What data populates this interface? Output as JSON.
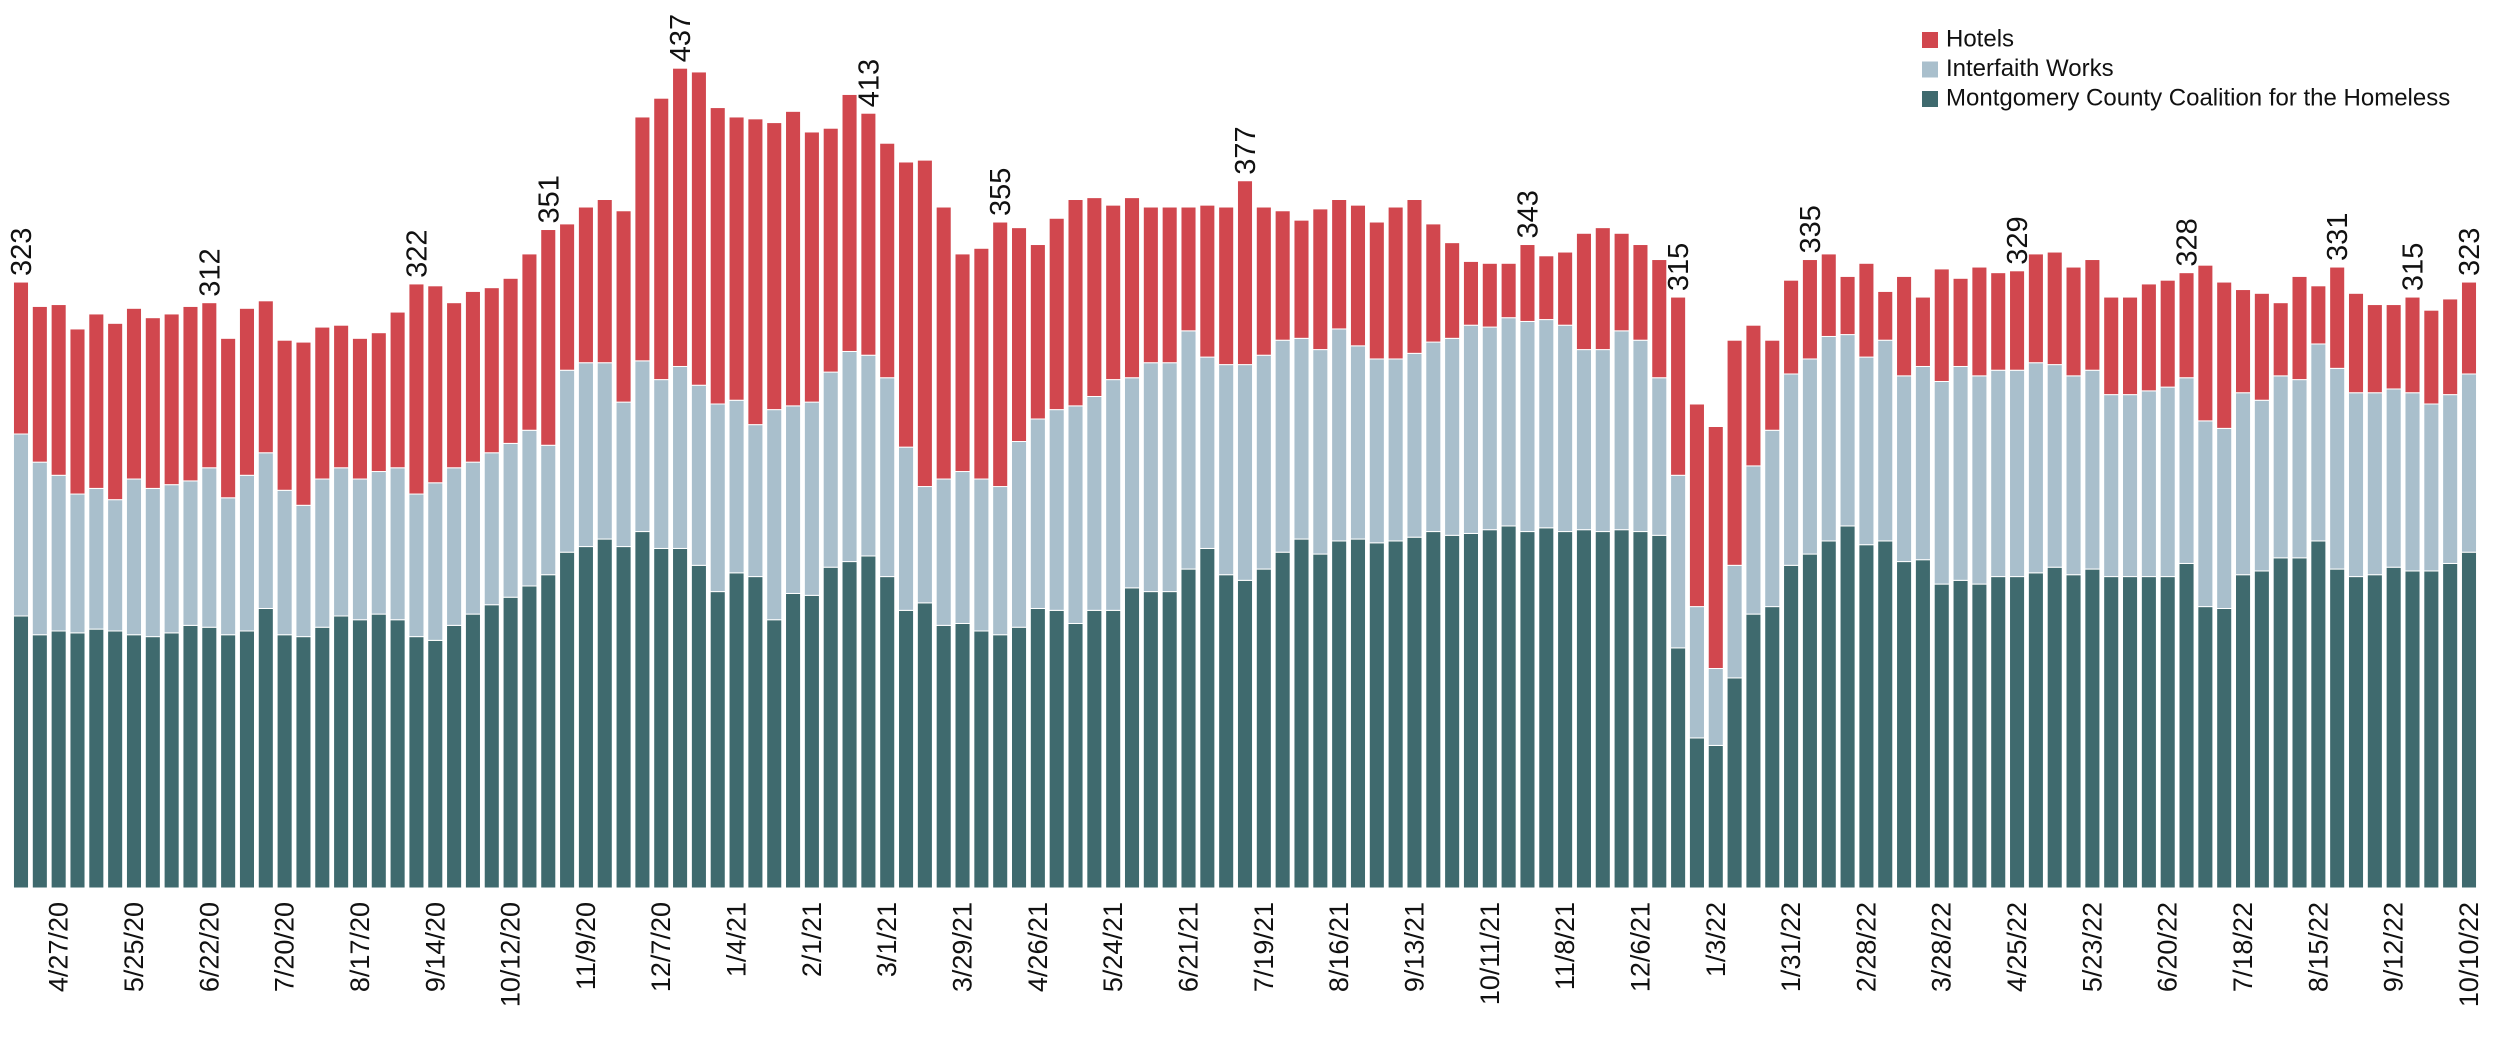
{
  "chart_data": {
    "type": "stacked_bar",
    "legend": "top-right",
    "categories": [
      null,
      null,
      "4/27/20",
      null,
      null,
      null,
      "5/25/20",
      null,
      null,
      null,
      "6/22/20",
      null,
      null,
      null,
      "7/20/20",
      null,
      null,
      null,
      "8/17/20",
      null,
      null,
      null,
      "9/14/20",
      null,
      null,
      null,
      "10/12/20",
      null,
      null,
      null,
      "11/9/20",
      null,
      null,
      null,
      "12/7/20",
      null,
      null,
      null,
      "1/4/21",
      null,
      null,
      null,
      "2/1/21",
      null,
      null,
      null,
      "3/1/21",
      null,
      null,
      null,
      "3/29/21",
      null,
      null,
      null,
      "4/26/21",
      null,
      null,
      null,
      "5/24/21",
      null,
      null,
      null,
      "6/21/21",
      null,
      null,
      null,
      "7/19/21",
      null,
      null,
      null,
      "8/16/21",
      null,
      null,
      null,
      "9/13/21",
      null,
      null,
      null,
      "10/11/21",
      null,
      null,
      null,
      "11/8/21",
      null,
      null,
      null,
      "12/6/21",
      null,
      null,
      null,
      "1/3/22",
      null,
      null,
      null,
      "1/31/22",
      null,
      null,
      null,
      "2/28/22",
      null,
      null,
      null,
      "3/28/22",
      null,
      null,
      null,
      "4/25/22",
      null,
      null,
      null,
      "5/23/22",
      null,
      null,
      null,
      "6/20/22",
      null,
      null,
      null,
      "7/18/22",
      null,
      null,
      null,
      "8/15/22",
      null,
      null,
      null,
      "9/12/22",
      null,
      null,
      null,
      "10/10/22"
    ],
    "series": [
      {
        "name": "Montgomery County Coalition for the Homeless",
        "color": "#3f6a6e",
        "values": [
          145,
          135,
          137,
          136,
          138,
          137,
          135,
          134,
          136,
          140,
          139,
          135,
          137,
          149,
          135,
          134,
          139,
          145,
          143,
          146,
          143,
          134,
          132,
          140,
          146,
          151,
          155,
          161,
          167,
          179,
          182,
          186,
          182,
          190,
          181,
          181,
          172,
          158,
          168,
          166,
          143,
          157,
          156,
          171,
          174,
          177,
          166,
          148,
          152,
          140,
          141,
          137,
          135,
          139,
          149,
          148,
          141,
          148,
          148,
          160,
          158,
          158,
          170,
          181,
          167,
          164,
          170,
          179,
          186,
          178,
          185,
          186,
          184,
          185,
          187,
          190,
          188,
          189,
          191,
          193,
          190,
          192,
          190,
          191,
          190,
          191,
          190,
          188,
          128,
          80,
          76,
          112,
          146,
          150,
          172,
          178,
          185,
          193,
          183,
          185,
          174,
          175,
          162,
          164,
          162,
          166,
          166,
          168,
          171,
          167,
          170,
          166,
          166,
          166,
          166,
          173,
          150,
          149,
          167,
          169,
          176,
          176,
          185,
          170,
          166,
          167,
          171,
          169,
          169,
          173,
          179
        ]
      },
      {
        "name": "Interfaith Works",
        "color": "#a9bfcc",
        "values": [
          97,
          92,
          83,
          74,
          75,
          70,
          83,
          79,
          79,
          77,
          85,
          73,
          83,
          83,
          77,
          70,
          79,
          79,
          75,
          76,
          81,
          76,
          84,
          84,
          81,
          81,
          82,
          83,
          69,
          97,
          98,
          94,
          77,
          91,
          90,
          97,
          96,
          100,
          92,
          81,
          112,
          100,
          103,
          104,
          112,
          107,
          106,
          87,
          62,
          78,
          81,
          81,
          79,
          99,
          101,
          107,
          116,
          114,
          123,
          112,
          122,
          122,
          127,
          102,
          112,
          115,
          114,
          113,
          107,
          109,
          113,
          103,
          98,
          97,
          98,
          101,
          105,
          111,
          108,
          111,
          112,
          111,
          110,
          96,
          97,
          106,
          102,
          84,
          92,
          70,
          41,
          60,
          79,
          94,
          102,
          104,
          109,
          102,
          100,
          107,
          99,
          103,
          108,
          114,
          111,
          110,
          110,
          112,
          108,
          106,
          106,
          97,
          97,
          99,
          101,
          99,
          99,
          96,
          97,
          91,
          97,
          95,
          105,
          107,
          98,
          97,
          95,
          95,
          89,
          90,
          95
        ]
      },
      {
        "name": "Hotels",
        "color": "#d1474e",
        "values": [
          81,
          83,
          91,
          88,
          93,
          94,
          91,
          91,
          91,
          93,
          88,
          85,
          89,
          81,
          80,
          87,
          81,
          76,
          75,
          74,
          83,
          112,
          105,
          88,
          91,
          88,
          88,
          94,
          115,
          78,
          83,
          87,
          102,
          130,
          150,
          159,
          167,
          158,
          151,
          163,
          153,
          157,
          144,
          130,
          137,
          129,
          125,
          152,
          174,
          145,
          116,
          123,
          141,
          114,
          93,
          102,
          110,
          106,
          93,
          96,
          83,
          83,
          66,
          81,
          84,
          98,
          79,
          69,
          63,
          75,
          69,
          75,
          73,
          81,
          82,
          63,
          51,
          34,
          34,
          29,
          41,
          34,
          39,
          62,
          65,
          52,
          51,
          63,
          95,
          108,
          129,
          120,
          75,
          48,
          50,
          53,
          44,
          31,
          50,
          26,
          53,
          37,
          60,
          47,
          58,
          52,
          53,
          58,
          60,
          58,
          59,
          52,
          52,
          57,
          57,
          56,
          83,
          78,
          55,
          57,
          39,
          55,
          31,
          54,
          53,
          47,
          45,
          51,
          50,
          51,
          49
        ]
      }
    ],
    "totals": [
      323,
      null,
      null,
      null,
      null,
      null,
      null,
      null,
      null,
      null,
      312,
      null,
      null,
      null,
      null,
      null,
      null,
      null,
      null,
      null,
      null,
      322,
      null,
      null,
      null,
      null,
      null,
      null,
      351,
      null,
      null,
      null,
      null,
      null,
      null,
      437,
      null,
      null,
      null,
      null,
      null,
      null,
      null,
      null,
      null,
      413,
      null,
      null,
      null,
      null,
      null,
      null,
      355,
      null,
      null,
      null,
      null,
      null,
      null,
      null,
      null,
      null,
      null,
      null,
      null,
      377,
      null,
      null,
      null,
      null,
      null,
      null,
      null,
      null,
      null,
      null,
      null,
      null,
      null,
      null,
      343,
      null,
      null,
      null,
      null,
      null,
      null,
      null,
      315,
      null,
      null,
      null,
      null,
      null,
      null,
      335,
      null,
      null,
      null,
      null,
      null,
      null,
      null,
      null,
      null,
      null,
      329,
      null,
      null,
      null,
      null,
      null,
      null,
      null,
      null,
      328,
      null,
      null,
      null,
      null,
      null,
      null,
      null,
      331,
      null,
      null,
      null,
      315,
      null,
      null,
      323
    ]
  }
}
